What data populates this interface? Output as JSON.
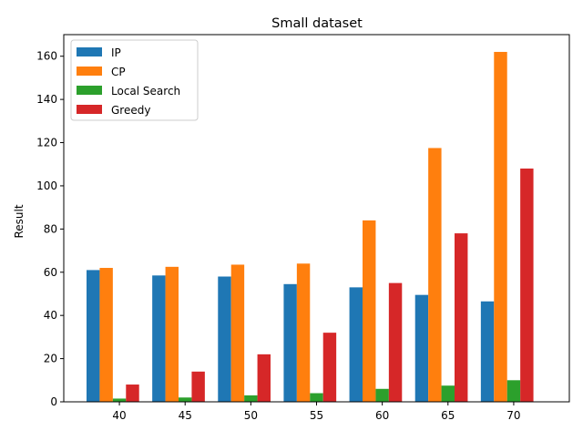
{
  "chart_data": {
    "type": "bar",
    "title": "Small dataset",
    "xlabel": "",
    "ylabel": "Result",
    "categories": [
      "40",
      "45",
      "50",
      "55",
      "60",
      "65",
      "70"
    ],
    "ylim": [
      0,
      170
    ],
    "yticks": [
      0,
      20,
      40,
      60,
      80,
      100,
      120,
      140,
      160
    ],
    "grid": false,
    "legend_position": "top-left",
    "series": [
      {
        "name": "IP",
        "color": "#1f77b4",
        "values": [
          61,
          58.5,
          58,
          54.5,
          53,
          49.5,
          46.5
        ]
      },
      {
        "name": "CP",
        "color": "#ff7f0e",
        "values": [
          62,
          62.5,
          63.5,
          64,
          84,
          117.5,
          162
        ]
      },
      {
        "name": "Local Search",
        "color": "#2ca02c",
        "values": [
          1.5,
          2,
          3,
          4,
          6,
          7.5,
          10
        ]
      },
      {
        "name": "Greedy",
        "color": "#d62728",
        "values": [
          8,
          14,
          22,
          32,
          55,
          78,
          108
        ]
      }
    ]
  }
}
